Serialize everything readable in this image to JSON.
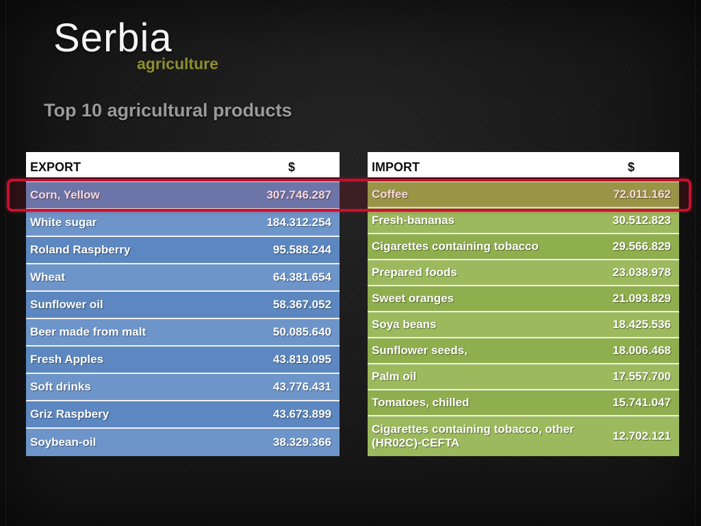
{
  "slide": {
    "title": "Serbia",
    "subtitle": "agriculture",
    "heading": "Top 10 agricultural products"
  },
  "export_table": {
    "header": {
      "name": "EXPORT",
      "value": "$"
    },
    "rows": [
      {
        "label": "Corn, Yellow",
        "value": "307.746.287",
        "highlighted": true
      },
      {
        "label": "White sugar",
        "value": "184.312.254",
        "highlighted": false
      },
      {
        "label": "Roland Raspberry",
        "value": "95.588.244",
        "highlighted": false
      },
      {
        "label": "Wheat",
        "value": "64.381.654",
        "highlighted": false
      },
      {
        "label": "Sunflower oil",
        "value": "58.367.052",
        "highlighted": false
      },
      {
        "label": "Beer made from malt",
        "value": "50.085.640",
        "highlighted": false
      },
      {
        "label": "Fresh Apples",
        "value": "43.819.095",
        "highlighted": false
      },
      {
        "label": "Soft drinks",
        "value": "43.776.431",
        "highlighted": false
      },
      {
        "label": "Griz Raspbery",
        "value": "43.673.899",
        "highlighted": false
      },
      {
        "label": "Soybean-oil",
        "value": "38.329.366",
        "highlighted": false
      }
    ]
  },
  "import_table": {
    "header": {
      "name": "IMPORT",
      "value": "$"
    },
    "rows": [
      {
        "label": "Coffee",
        "value": "72.011.162",
        "highlighted": true
      },
      {
        "label": "Fresh-bananas",
        "value": "30.512.823",
        "highlighted": false
      },
      {
        "label": "Cigarettes containing tobacco",
        "value": "29.566.829",
        "highlighted": false
      },
      {
        "label": "Prepared foods",
        "value": "23.038.978",
        "highlighted": false
      },
      {
        "label": "Sweet oranges",
        "value": "21.093.829",
        "highlighted": false
      },
      {
        "label": "Soya beans",
        "value": "18.425.536",
        "highlighted": false
      },
      {
        "label": "Sunflower seeds,",
        "value": "18.006.468",
        "highlighted": false
      },
      {
        "label": "Palm oil",
        "value": "17.557.700",
        "highlighted": false
      },
      {
        "label": "Tomatoes, chilled",
        "value": "15.741.047",
        "highlighted": false
      },
      {
        "label": "Cigarettes containing tobacco, other (HR02C)-CEFTA",
        "value": "12.702.121",
        "highlighted": false
      }
    ]
  },
  "highlight": {
    "border_color": "#c8102e"
  },
  "colors": {
    "export_row": "#5c87c0",
    "export_row_alt": "#6d95ca",
    "import_row": "#8fae4d",
    "import_row_alt": "#9cba5d",
    "subtitle": "#8d8f2e",
    "heading": "#9a9a9a",
    "background": "#151515"
  }
}
